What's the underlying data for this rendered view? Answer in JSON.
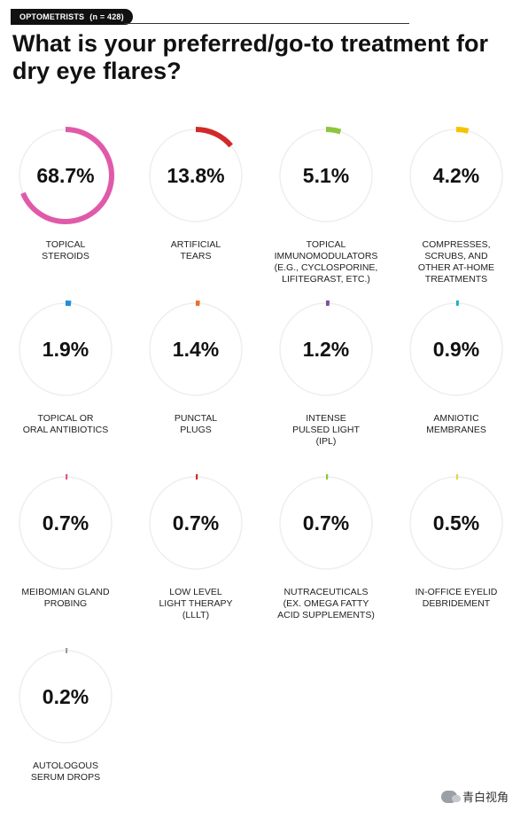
{
  "header": {
    "group": "OPTOMETRISTS",
    "n": "(n = 428)"
  },
  "title": "What is your preferred/go-to treatment for dry eye flares?",
  "watermark": "青白视角",
  "chart_data": {
    "type": "donut-grid",
    "title": "What is your preferred/go-to treatment for dry eye flares?",
    "unit": "%",
    "items": [
      {
        "label": "TOPICAL STEROIDS",
        "value": 68.7,
        "display": "68.7%",
        "color": "#e05aa9"
      },
      {
        "label": "ARTIFICIAL TEARS",
        "value": 13.8,
        "display": "13.8%",
        "color": "#d12a2a"
      },
      {
        "label": "TOPICAL IMMUNOMODULATORS (E.G., CYCLOSPORINE, LIFITEGRAST, ETC.)",
        "value": 5.1,
        "display": "5.1%",
        "color": "#8cc63f"
      },
      {
        "label": "COMPRESSES, SCRUBS, AND OTHER AT-HOME TREATMENTS",
        "value": 4.2,
        "display": "4.2%",
        "color": "#f5c400"
      },
      {
        "label": "TOPICAL OR ORAL ANTIBIOTICS",
        "value": 1.9,
        "display": "1.9%",
        "color": "#1e8fd6"
      },
      {
        "label": "PUNCTAL PLUGS",
        "value": 1.4,
        "display": "1.4%",
        "color": "#e8702a"
      },
      {
        "label": "INTENSE PULSED LIGHT (IPL)",
        "value": 1.2,
        "display": "1.2%",
        "color": "#7b4fa0"
      },
      {
        "label": "AMNIOTIC MEMBRANES",
        "value": 0.9,
        "display": "0.9%",
        "color": "#17b0c4"
      },
      {
        "label": "MEIBOMIAN GLAND PROBING",
        "value": 0.7,
        "display": "0.7%",
        "color": "#e05a7a"
      },
      {
        "label": "LOW LEVEL LIGHT THERAPY (LLLT)",
        "value": 0.7,
        "display": "0.7%",
        "color": "#d12a2a"
      },
      {
        "label": "NUTRACEUTICALS (EX. OMEGA FATTY ACID SUPPLEMENTS)",
        "value": 0.7,
        "display": "0.7%",
        "color": "#8cc63f"
      },
      {
        "label": "IN-OFFICE EYELID DEBRIDEMENT",
        "value": 0.5,
        "display": "0.5%",
        "color": "#d9d94a"
      },
      {
        "label": "AUTOLOGOUS SERUM DROPS",
        "value": 0.2,
        "display": "0.2%",
        "color": "#9a9a9a"
      }
    ],
    "labels_display": [
      "TOPICAL\nSTEROIDS",
      "ARTIFICIAL\nTEARS",
      "TOPICAL\nIMMUNOMODULATORS\n(E.G., CYCLOSPORINE,\nLIFITEGRAST, ETC.)",
      "COMPRESSES,\nSCRUBS, AND\nOTHER AT-HOME\nTREATMENTS",
      "TOPICAL OR\nORAL ANTIBIOTICS",
      "PUNCTAL\nPLUGS",
      "INTENSE\nPULSED LIGHT\n(IPL)",
      "AMNIOTIC\nMEMBRANES",
      "MEIBOMIAN GLAND\nPROBING",
      "LOW LEVEL\nLIGHT THERAPY\n(LLLT)",
      "NUTRACEUTICALS\n(EX. OMEGA FATTY\nACID SUPPLEMENTS)",
      "IN-OFFICE EYELID\nDEBRIDEMENT",
      "AUTOLOGOUS\nSERUM DROPS"
    ],
    "track_color": "#eeeeee"
  }
}
